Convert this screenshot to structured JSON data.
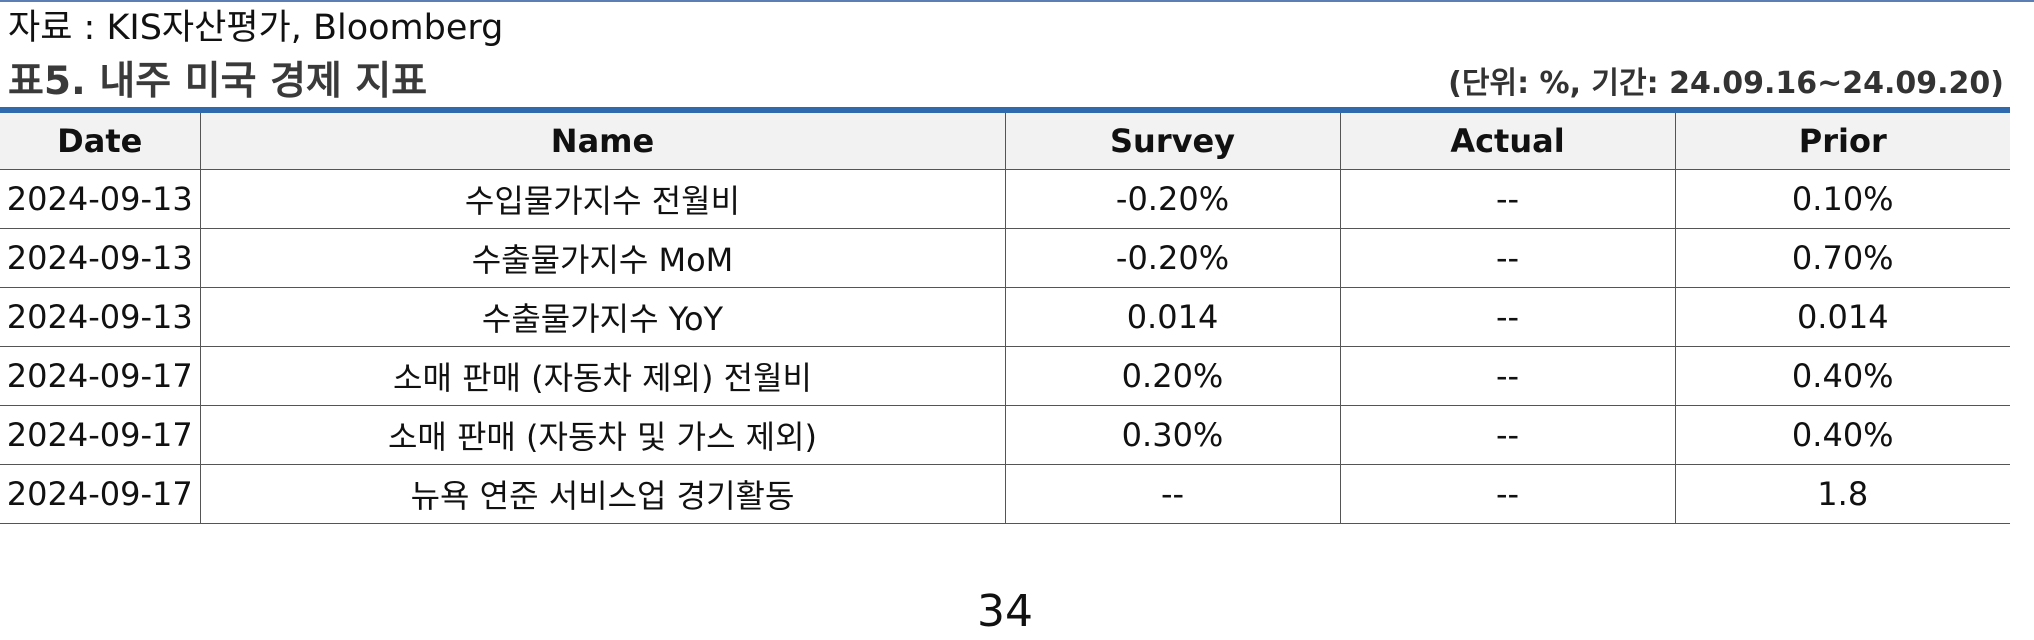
{
  "source": "자료 : KIS자산평가, Bloomberg",
  "title": "표5. 내주 미국 경제 지표",
  "unit_note": "(단위: %, 기간: 24.09.16~24.09.20)",
  "table": {
    "headers": [
      "Date",
      "Name",
      "Survey",
      "Actual",
      "Prior"
    ],
    "rows": [
      [
        "2024-09-13",
        "수입물가지수 전월비",
        "-0.20%",
        "--",
        "0.10%"
      ],
      [
        "2024-09-13",
        "수출물가지수 MoM",
        "-0.20%",
        "--",
        "0.70%"
      ],
      [
        "2024-09-13",
        "수출물가지수 YoY",
        "0.014",
        "--",
        "0.014"
      ],
      [
        "2024-09-17",
        "소매 판매 (자동차 제외) 전월비",
        "0.20%",
        "--",
        "0.40%"
      ],
      [
        "2024-09-17",
        "소매 판매 (자동차 및 가스 제외)",
        "0.30%",
        "--",
        "0.40%"
      ],
      [
        "2024-09-17",
        "뉴욕 연준 서비스업 경기활동",
        "--",
        "--",
        "1.8"
      ]
    ]
  },
  "page_number": "34",
  "colors": {
    "accent_bar": "#2f6aae",
    "header_bg": "#f2f2f2"
  }
}
